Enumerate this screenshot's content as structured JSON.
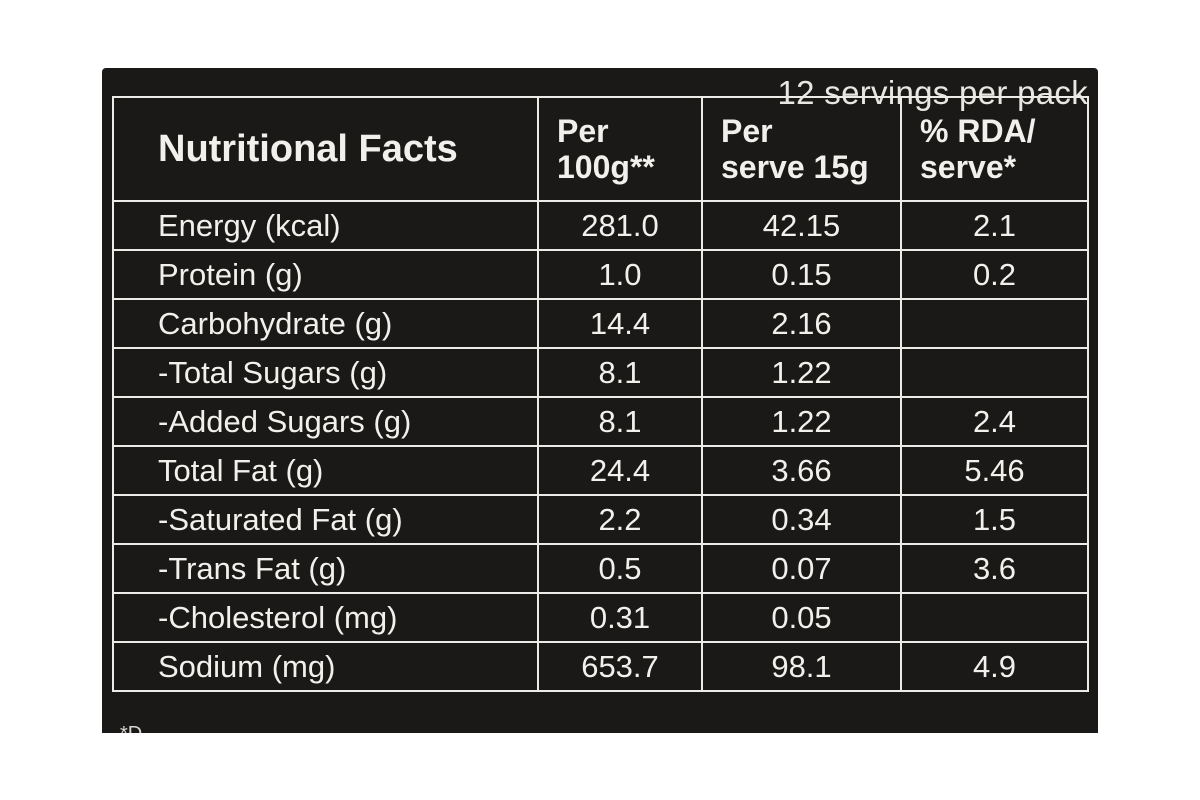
{
  "servings_note": "12 servings per pack",
  "table": {
    "headers": {
      "name": "Nutritional Facts",
      "per_100g_line1": "Per",
      "per_100g_line2": "100g**",
      "per_serve_line1": "Per",
      "per_serve_line2": "serve 15g",
      "rda_line1": "% RDA/",
      "rda_line2": "serve*"
    },
    "rows": [
      {
        "name": "Energy (kcal)",
        "per_100g": "281.0",
        "per_serve": "42.15",
        "rda": "2.1"
      },
      {
        "name": "Protein (g)",
        "per_100g": "1.0",
        "per_serve": "0.15",
        "rda": "0.2"
      },
      {
        "name": "Carbohydrate (g)",
        "per_100g": "14.4",
        "per_serve": "2.16",
        "rda": ""
      },
      {
        "name": "-Total Sugars (g)",
        "per_100g": "8.1",
        "per_serve": "1.22",
        "rda": ""
      },
      {
        "name": "-Added Sugars (g)",
        "per_100g": "8.1",
        "per_serve": "1.22",
        "rda": "2.4"
      },
      {
        "name": "Total Fat (g)",
        "per_100g": "24.4",
        "per_serve": "3.66",
        "rda": "5.46"
      },
      {
        "name": "-Saturated Fat (g)",
        "per_100g": "2.2",
        "per_serve": "0.34",
        "rda": "1.5"
      },
      {
        "name": "-Trans Fat (g)",
        "per_100g": "0.5",
        "per_serve": "0.07",
        "rda": "3.6"
      },
      {
        "name": "-Cholesterol (mg)",
        "per_100g": "0.31",
        "per_serve": "0.05",
        "rda": ""
      },
      {
        "name": "Sodium (mg)",
        "per_100g": "653.7",
        "per_serve": "98.1",
        "rda": "4.9"
      }
    ]
  },
  "footnote_fragment": "*D"
}
